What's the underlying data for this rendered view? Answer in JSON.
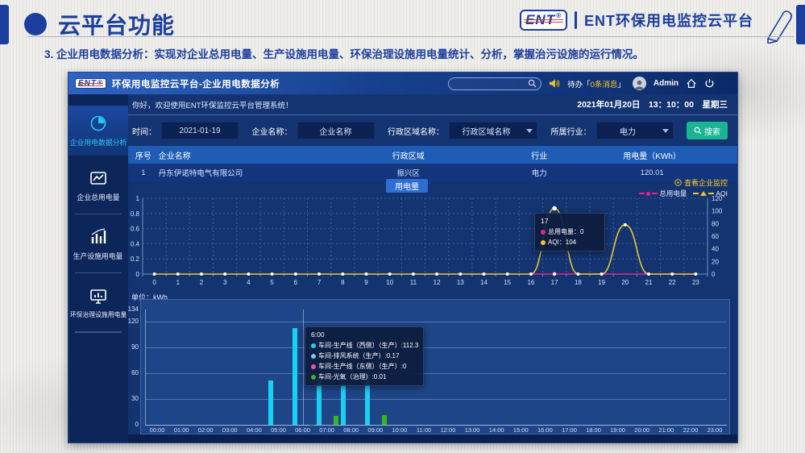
{
  "slide": {
    "title": "云平台功能",
    "subtitle": "3. 企业用电数据分析：实现对企业总用电量、生产设施用电量、环保治理设施用电量统计、分析，掌握治污设施的运行情况。",
    "brand": {
      "logo": "ENT",
      "reg": "®",
      "name": "ENT环保用电监控云平台"
    }
  },
  "app": {
    "titlebar": {
      "logo": "ENT",
      "reg": "®",
      "title": "环保用电监控云平台-企业用电数据分析",
      "todo_prefix": "待办「",
      "todo_count": "0条消息",
      "todo_suffix": "」",
      "user": "Admin"
    },
    "welcome": "你好，欢迎使用ENT环保监控云平台管理系统！",
    "datetime": "2021年01月20日　13：10：00　星期三",
    "sidebar": {
      "items": [
        {
          "label": "企业用电数据分析",
          "active": true
        },
        {
          "label": "企业总用电量",
          "active": false
        },
        {
          "label": "生产设施用电量",
          "active": false
        },
        {
          "label": "环保治理设施用电量",
          "active": false
        }
      ]
    },
    "filters": {
      "time_label": "时间：",
      "time_value": "2021-01-19",
      "company_label": "企业名称：",
      "company_value": "企业名称",
      "region_label": "行政区域名称：",
      "region_value": "行政区域名称",
      "industry_label": "所属行业：",
      "industry_value": "电力",
      "search_label": "搜索"
    },
    "table": {
      "headers": [
        "序号",
        "企业名称",
        "行政区域",
        "行业",
        "用电量（KWh）"
      ],
      "row": {
        "index": "1",
        "company": "丹东伊诺特电气有限公司",
        "region": "振兴区",
        "industry": "电力",
        "usage": "120.01"
      }
    },
    "usage_tab": "用电量",
    "monitor_link": "查看企业监控"
  },
  "chart_data": [
    {
      "type": "line",
      "x_labels": [
        "0",
        "1",
        "2",
        "3",
        "4",
        "5",
        "6",
        "7",
        "8",
        "9",
        "10",
        "11",
        "12",
        "13",
        "14",
        "15",
        "16",
        "17",
        "18",
        "19",
        "20",
        "21",
        "22",
        "23"
      ],
      "series": [
        {
          "name": "总用电量",
          "color": "#e2268f",
          "marker": "circle",
          "values": [
            0,
            0,
            0,
            0,
            0,
            0,
            0,
            0,
            0,
            0,
            0,
            0,
            0,
            0,
            0,
            0,
            0,
            0,
            0,
            0,
            0,
            0,
            0,
            0
          ]
        },
        {
          "name": "AQI",
          "color": "#e8c634",
          "marker": "triangle",
          "values": [
            0,
            0,
            0,
            0,
            0,
            0,
            0,
            0,
            0,
            0,
            0,
            0,
            0,
            0,
            0,
            0,
            0,
            104,
            0,
            0,
            78,
            0,
            0,
            0
          ]
        }
      ],
      "left_axis_ticks": [
        "1",
        "0.8",
        "0.6",
        "0.4",
        "0.2",
        "0"
      ],
      "right_axis_ticks": [
        "120",
        "100",
        "80",
        "60",
        "40",
        "20",
        "0"
      ],
      "right_axis_max": 120,
      "tooltip": {
        "title": "17",
        "rows": [
          {
            "label": "总用电量",
            "value": "0",
            "color": "#e2268f"
          },
          {
            "label": "AQI",
            "value": "104",
            "color": "#e8c634"
          }
        ]
      }
    },
    {
      "type": "bar",
      "unit": "单位：kWh",
      "categories": [
        "00:00",
        "01:00",
        "02:00",
        "03:00",
        "04:00",
        "05:00",
        "06:00",
        "07:00",
        "08:00",
        "09:00",
        "10:00",
        "11:00",
        "12:00",
        "13:00",
        "14:00",
        "15:00",
        "16:00",
        "17:00",
        "18:00",
        "19:00",
        "20:00",
        "21:00",
        "22:00",
        "23:00"
      ],
      "series": [
        {
          "name": "车间-生产线（西侧）（生产）",
          "color": "#18d0f2",
          "values": [
            0,
            0,
            0,
            0,
            0,
            52,
            112.3,
            53,
            48,
            59,
            0,
            0,
            0,
            0,
            0,
            0,
            0,
            0,
            0,
            0,
            0,
            0,
            0,
            0
          ]
        },
        {
          "name": "车间-排风系统（生产）",
          "color": "#7ec2ec",
          "values": [
            0,
            0,
            0,
            0,
            0,
            0,
            0.17,
            0,
            0,
            0,
            0,
            0,
            0,
            0,
            0,
            0,
            0,
            0,
            0,
            0,
            0,
            0,
            0,
            0
          ]
        },
        {
          "name": "车间-生产线（东侧）（生产）",
          "color": "#f0519e",
          "values": [
            0,
            0,
            0,
            0,
            0,
            0,
            0,
            0,
            0,
            0,
            0,
            0,
            0,
            0,
            0,
            0,
            0,
            0,
            0,
            0,
            0,
            0,
            0,
            0
          ]
        },
        {
          "name": "车间-光氧（治理）",
          "color": "#35b71f",
          "values": [
            0,
            0,
            0,
            0,
            0,
            0,
            0.01,
            10,
            0,
            11,
            0,
            0,
            0,
            0,
            0,
            0,
            0,
            0,
            0,
            0,
            0,
            0,
            0,
            0
          ]
        }
      ],
      "y_tick_labels": [
        "134",
        "120",
        "90",
        "60",
        "30",
        "0"
      ],
      "y_tick_values": [
        134,
        120,
        90,
        60,
        30,
        0
      ],
      "ymax": 134,
      "tooltip": {
        "title": "6:00",
        "rows": [
          {
            "label": "车间-生产线（西侧）（生产）",
            "value": "112.3",
            "color": "#18d0f2"
          },
          {
            "label": "车间-排风系统（生产）",
            "value": "0.17",
            "color": "#7ec2ec"
          },
          {
            "label": "车间-生产线（东侧）（生产）",
            "value": "0",
            "color": "#f0519e"
          },
          {
            "label": "车间-光氧（治理）",
            "value": "0.01",
            "color": "#35b71f"
          }
        ]
      }
    }
  ]
}
